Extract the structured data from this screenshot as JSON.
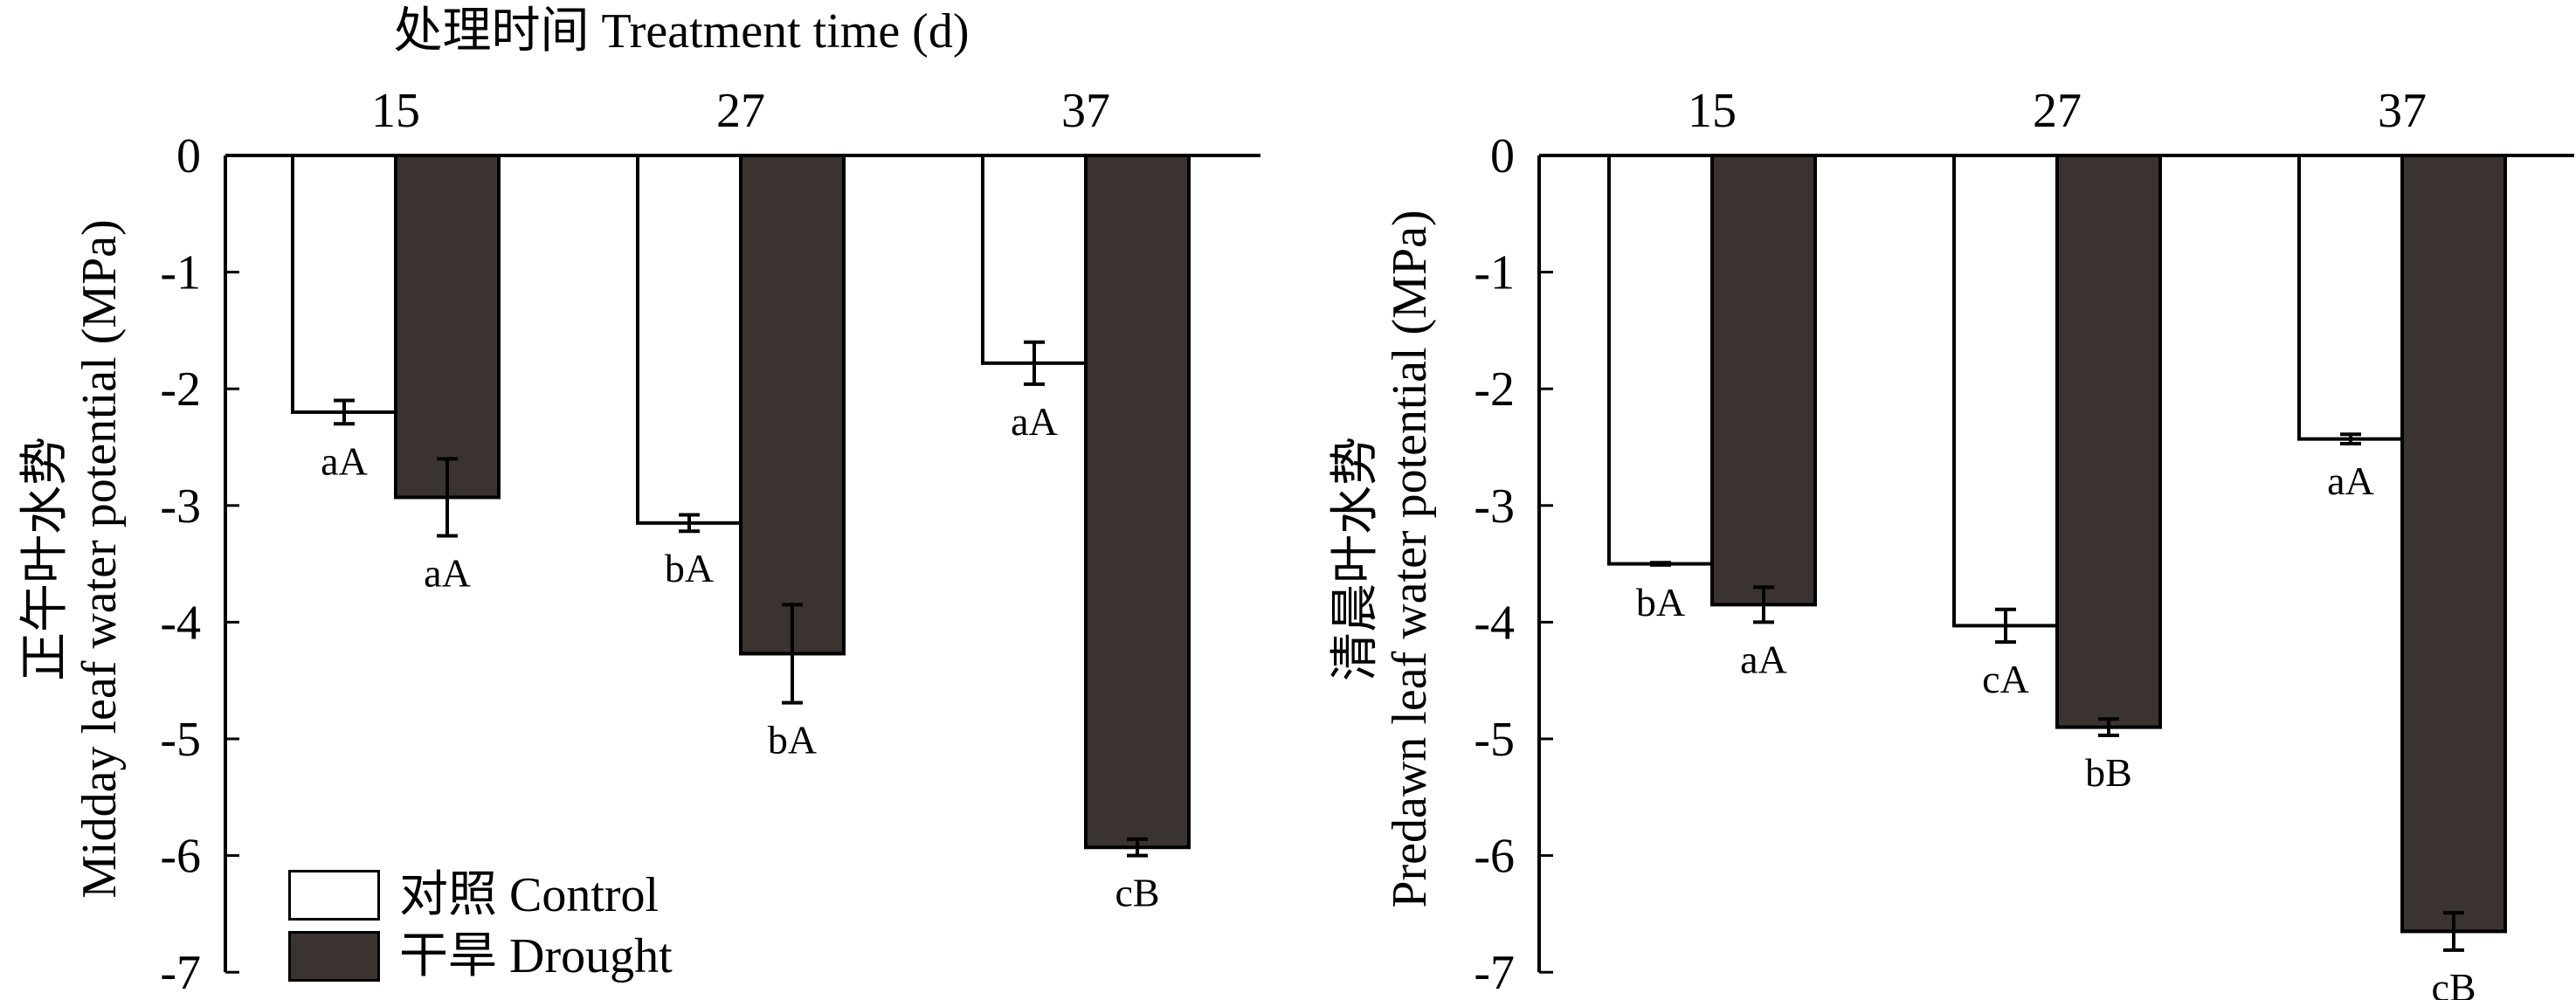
{
  "top_title": "处理时间 Treatment time (d)",
  "legend": [
    {
      "label": "对照 Control",
      "color": "#ffffff"
    },
    {
      "label": "干旱 Drought",
      "color": "#3a3330"
    }
  ],
  "colors": {
    "control": "#ffffff",
    "drought": "#3a3330",
    "axis": "#000000"
  },
  "chart_data": [
    {
      "type": "bar",
      "categories": [
        "15",
        "27",
        "37"
      ],
      "ylabel_lines": [
        "正午叶水势",
        "Midday leaf water potential (MPa)"
      ],
      "ylim": [
        -7,
        0
      ],
      "yticks": [
        "0",
        "-1",
        "-2",
        "-3",
        "-4",
        "-5",
        "-6",
        "-7"
      ],
      "series": [
        {
          "name": "对照 Control",
          "values": [
            -2.2,
            -3.15,
            -1.78
          ],
          "errors": [
            0.1,
            0.07,
            0.18
          ],
          "labels": [
            "aA",
            "bA",
            "aA"
          ]
        },
        {
          "name": "干旱 Drought",
          "values": [
            -2.93,
            -4.27,
            -5.93
          ],
          "errors": [
            0.33,
            0.42,
            0.07
          ],
          "labels": [
            "aA",
            "bA",
            "cB"
          ]
        }
      ]
    },
    {
      "type": "bar",
      "categories": [
        "15",
        "27",
        "37"
      ],
      "ylabel_lines": [
        "清晨叶水势",
        "Predawn leaf water potential (MPa)"
      ],
      "ylim": [
        -7,
        0
      ],
      "yticks": [
        "0",
        "-1",
        "-2",
        "-3",
        "-4",
        "-5",
        "-6",
        "-7"
      ],
      "series": [
        {
          "name": "对照 Control",
          "values": [
            -3.5,
            -4.03,
            -2.43
          ],
          "errors": [
            0.01,
            0.14,
            0.04
          ],
          "labels": [
            "bA",
            "cA",
            "aA"
          ]
        },
        {
          "name": "干旱 Drought",
          "values": [
            -3.85,
            -4.9,
            -6.65
          ],
          "errors": [
            0.15,
            0.07,
            0.16
          ],
          "labels": [
            "aA",
            "bB",
            "cB"
          ]
        }
      ]
    }
  ]
}
